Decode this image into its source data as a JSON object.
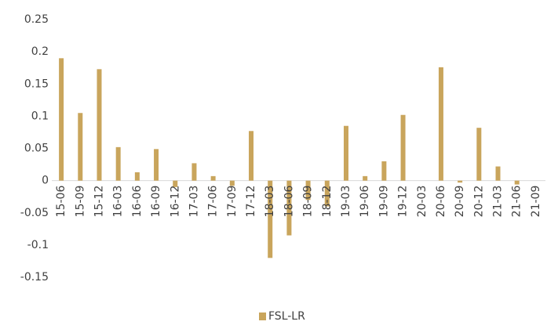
{
  "chart_data": {
    "type": "bar",
    "categories": [
      "15-06",
      "15-09",
      "15-12",
      "16-03",
      "16-06",
      "16-09",
      "16-12",
      "17-03",
      "17-06",
      "17-09",
      "17-12",
      "18-03",
      "18-06",
      "18-09",
      "18-12",
      "19-03",
      "19-06",
      "19-09",
      "19-12",
      "20-03",
      "20-06",
      "20-09",
      "20-12",
      "21-03",
      "21-06",
      "21-09"
    ],
    "series": [
      {
        "name": "FSL-LR",
        "color": "#c9a55c",
        "values": [
          0.19,
          0.105,
          0.173,
          0.052,
          0.013,
          0.049,
          -0.01,
          0.027,
          0.007,
          -0.008,
          0.077,
          -0.12,
          -0.085,
          -0.03,
          -0.04,
          0.085,
          0.007,
          0.03,
          0.102,
          0,
          0.176,
          -0.003,
          0.082,
          0.022,
          -0.006,
          0
        ]
      }
    ],
    "ylim": [
      -0.15,
      0.25
    ],
    "yticks": [
      -0.15,
      -0.1,
      -0.05,
      0,
      0.05,
      0.1,
      0.15,
      0.2,
      0.25
    ],
    "grid": false,
    "legend": "bottom"
  }
}
